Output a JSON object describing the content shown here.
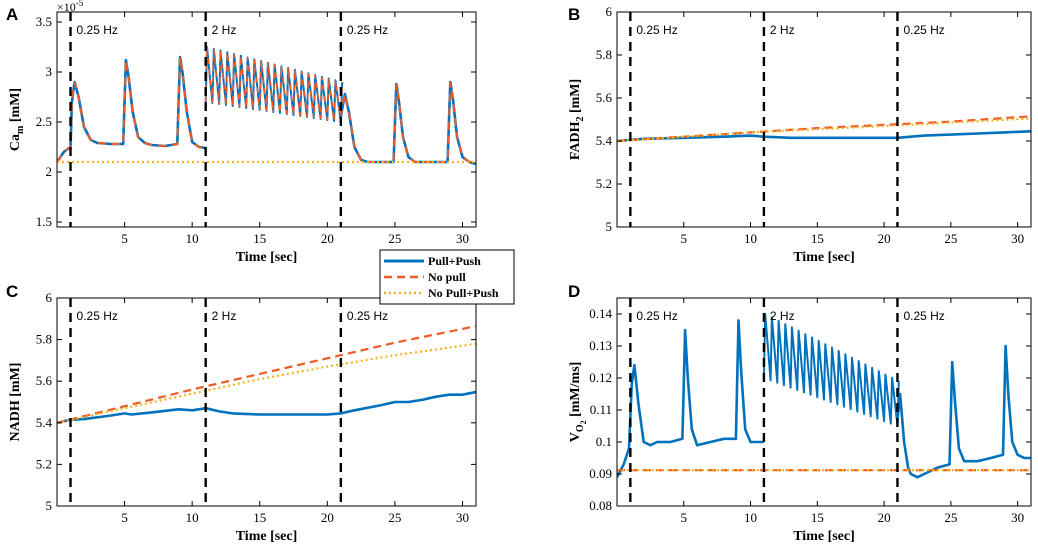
{
  "colors": {
    "pull_push": "#0072BD",
    "no_pull": "#EF5B25",
    "no_pull_push": "#F5B120",
    "stim_line": "#000000"
  },
  "legend": {
    "entries": [
      "Pull+Push",
      "No pull",
      "No Pull+Push"
    ]
  },
  "chart_data": [
    {
      "panel": "A",
      "type": "line",
      "title": "",
      "xlabel": "Time [sec]",
      "ylabel": "Ca_m [mM]",
      "ylabel_main": "Ca",
      "ylabel_sub": "m",
      "ylabel_unit": " [mM]",
      "exponent_label": "×10",
      "exponent_power": "-5",
      "xlim": [
        0,
        31
      ],
      "ylim": [
        1.45,
        3.6
      ],
      "xticks": [
        5,
        10,
        15,
        20,
        25,
        30
      ],
      "yticks": [
        1.5,
        2,
        2.5,
        3,
        3.5
      ],
      "ytick_labels": [
        "1.5",
        "2",
        "2.5",
        "3",
        "3.5"
      ],
      "stimulation_lines": [
        1,
        11,
        21
      ],
      "stimulation_labels": [
        "0.25 Hz",
        "2 Hz",
        "0.25 Hz"
      ],
      "series": [
        {
          "name": "Pull+Push",
          "style": "solid",
          "x": [
            0,
            0.5,
            1,
            1.1,
            1.3,
            1.6,
            2,
            2.5,
            3,
            4,
            4.9,
            5.1,
            5.3,
            5.6,
            6,
            6.5,
            7,
            8,
            8.9,
            9.1,
            9.3,
            9.6,
            10,
            10.5,
            11
          ],
          "y": [
            2.1,
            2.2,
            2.25,
            2.7,
            2.9,
            2.75,
            2.45,
            2.32,
            2.29,
            2.28,
            2.28,
            3.12,
            2.95,
            2.6,
            2.35,
            2.29,
            2.27,
            2.26,
            2.28,
            3.15,
            2.98,
            2.6,
            2.3,
            2.25,
            2.24
          ]
        },
        {
          "name": "Pull+Push",
          "style": "solid",
          "x": [
            21,
            21.3,
            21.6,
            22,
            22.5,
            23,
            24,
            24.9,
            25.1,
            25.3,
            25.6,
            26,
            26.5,
            27,
            28,
            28.9,
            29.1,
            29.3,
            29.6,
            30,
            30.5,
            31
          ],
          "y": [
            2.55,
            2.78,
            2.6,
            2.25,
            2.12,
            2.1,
            2.1,
            2.1,
            2.88,
            2.7,
            2.35,
            2.15,
            2.1,
            2.1,
            2.1,
            2.1,
            2.9,
            2.72,
            2.35,
            2.15,
            2.1,
            2.08
          ]
        },
        {
          "name": "No Pull+Push",
          "style": "dotted",
          "x": [
            0,
            31
          ],
          "y": [
            2.1,
            2.1
          ]
        }
      ],
      "oscillation": {
        "x_start": 11,
        "x_end": 21,
        "period": 0.5,
        "peak_start": 3.25,
        "peak_end": 2.9,
        "trough_start": 2.7,
        "trough_end": 2.5
      }
    },
    {
      "panel": "B",
      "type": "line",
      "title": "",
      "xlabel": "Time [sec]",
      "ylabel": "FADH_2 [mM]",
      "ylabel_main": "FADH",
      "ylabel_sub": "2",
      "ylabel_unit": " [mM]",
      "xlim": [
        0,
        31
      ],
      "ylim": [
        5,
        6
      ],
      "xticks": [
        5,
        10,
        15,
        20,
        25,
        30
      ],
      "yticks": [
        5,
        5.2,
        5.4,
        5.6,
        5.8,
        6
      ],
      "ytick_labels": [
        "5",
        "5.2",
        "5.4",
        "5.6",
        "5.8",
        "6"
      ],
      "stimulation_lines": [
        1,
        11,
        21
      ],
      "stimulation_labels": [
        "0.25 Hz",
        "2 Hz",
        "0.25 Hz"
      ],
      "series": [
        {
          "name": "Pull+Push",
          "style": "solid",
          "x": [
            0,
            2,
            5,
            8,
            10,
            11,
            13,
            15,
            18,
            21,
            23,
            25,
            27,
            29,
            31
          ],
          "y": [
            5.4,
            5.41,
            5.415,
            5.42,
            5.425,
            5.42,
            5.415,
            5.415,
            5.415,
            5.415,
            5.425,
            5.43,
            5.435,
            5.44,
            5.445
          ]
        },
        {
          "name": "No pull",
          "style": "dashed",
          "x": [
            0,
            5,
            10,
            15,
            20,
            25,
            31
          ],
          "y": [
            5.4,
            5.42,
            5.44,
            5.46,
            5.475,
            5.49,
            5.515
          ]
        },
        {
          "name": "No Pull+Push",
          "style": "dotted",
          "x": [
            0,
            5,
            10,
            15,
            20,
            25,
            31
          ],
          "y": [
            5.4,
            5.42,
            5.44,
            5.455,
            5.47,
            5.485,
            5.505
          ]
        }
      ]
    },
    {
      "panel": "C",
      "type": "line",
      "title": "",
      "xlabel": "Time [sec]",
      "ylabel": "NADH [mM]",
      "ylabel_main": "NADH",
      "ylabel_sub": "",
      "ylabel_unit": " [mM]",
      "xlim": [
        0,
        31
      ],
      "ylim": [
        5,
        6
      ],
      "xticks": [
        5,
        10,
        15,
        20,
        25,
        30
      ],
      "yticks": [
        5,
        5.2,
        5.4,
        5.6,
        5.8,
        6
      ],
      "ytick_labels": [
        "5",
        "5.2",
        "5.4",
        "5.6",
        "5.8",
        "6"
      ],
      "stimulation_lines": [
        1,
        11,
        21
      ],
      "stimulation_labels": [
        "0.25 Hz",
        "2 Hz",
        "0.25 Hz"
      ],
      "series": [
        {
          "name": "Pull+Push",
          "style": "solid",
          "x": [
            0,
            1,
            2,
            4,
            5,
            5.5,
            7,
            9,
            10,
            10.5,
            11,
            12,
            13,
            15,
            18,
            20,
            21,
            22,
            24,
            25,
            26,
            27,
            28,
            29,
            30,
            31
          ],
          "y": [
            5.4,
            5.415,
            5.418,
            5.435,
            5.445,
            5.44,
            5.45,
            5.465,
            5.46,
            5.465,
            5.47,
            5.455,
            5.445,
            5.44,
            5.44,
            5.44,
            5.445,
            5.46,
            5.485,
            5.5,
            5.5,
            5.51,
            5.525,
            5.535,
            5.535,
            5.548
          ]
        },
        {
          "name": "No pull",
          "style": "dashed",
          "x": [
            0,
            5,
            10,
            15,
            20,
            25,
            31
          ],
          "y": [
            5.4,
            5.48,
            5.56,
            5.635,
            5.71,
            5.785,
            5.865
          ]
        },
        {
          "name": "No Pull+Push",
          "style": "dotted",
          "x": [
            0,
            5,
            10,
            15,
            20,
            25,
            31
          ],
          "y": [
            5.4,
            5.47,
            5.54,
            5.61,
            5.67,
            5.725,
            5.78
          ]
        }
      ]
    },
    {
      "panel": "D",
      "type": "line",
      "title": "",
      "xlabel": "Time [sec]",
      "ylabel": "V_O2 [mM/ms]",
      "ylabel_main": "V",
      "ylabel_sub": "O",
      "ylabel_subsub": "2",
      "ylabel_unit": " [mM/ms]",
      "xlim": [
        0,
        31
      ],
      "ylim": [
        0.08,
        0.145
      ],
      "xticks": [
        5,
        10,
        15,
        20,
        25,
        30
      ],
      "yticks": [
        0.08,
        0.09,
        0.1,
        0.11,
        0.12,
        0.13,
        0.14
      ],
      "ytick_labels": [
        "0.08",
        "0.09",
        "0.1",
        "0.11",
        "0.12",
        "0.13",
        "0.14"
      ],
      "stimulation_lines": [
        1,
        11,
        21
      ],
      "stimulation_labels": [
        "0.25 Hz",
        "2 Hz",
        "0.25 Hz"
      ],
      "series": [
        {
          "name": "Pull+Push",
          "style": "solid",
          "x": [
            0,
            0.5,
            0.9,
            1.1,
            1.3,
            1.6,
            2,
            2.5,
            3,
            4,
            4.9,
            5.1,
            5.3,
            5.6,
            6,
            7,
            8,
            8.9,
            9.1,
            9.3,
            9.6,
            10,
            10.5,
            11
          ],
          "y": [
            0.089,
            0.093,
            0.098,
            0.118,
            0.124,
            0.112,
            0.1,
            0.099,
            0.1,
            0.1,
            0.101,
            0.135,
            0.12,
            0.104,
            0.099,
            0.1,
            0.101,
            0.101,
            0.138,
            0.122,
            0.104,
            0.1,
            0.1,
            0.1
          ]
        },
        {
          "name": "Pull+Push",
          "style": "solid",
          "x": [
            21,
            21.2,
            21.5,
            21.8,
            22,
            22.5,
            23,
            24,
            24.9,
            25.1,
            25.3,
            25.6,
            26,
            27,
            28,
            28.9,
            29.1,
            29.3,
            29.6,
            30,
            30.5,
            31
          ],
          "y": [
            0.107,
            0.115,
            0.1,
            0.092,
            0.09,
            0.089,
            0.09,
            0.092,
            0.093,
            0.125,
            0.113,
            0.098,
            0.094,
            0.094,
            0.095,
            0.096,
            0.13,
            0.115,
            0.1,
            0.096,
            0.095,
            0.095
          ]
        },
        {
          "name": "No pull",
          "style": "dashed",
          "x": [
            0,
            31
          ],
          "y": [
            0.0912,
            0.0912
          ]
        },
        {
          "name": "No Pull+Push",
          "style": "dotted",
          "x": [
            0,
            31
          ],
          "y": [
            0.0912,
            0.0912
          ]
        }
      ],
      "oscillation": {
        "x_start": 11,
        "x_end": 21,
        "period": 0.5,
        "peak_start": 0.14,
        "peak_end": 0.119,
        "trough_start": 0.12,
        "trough_end": 0.105
      }
    }
  ]
}
